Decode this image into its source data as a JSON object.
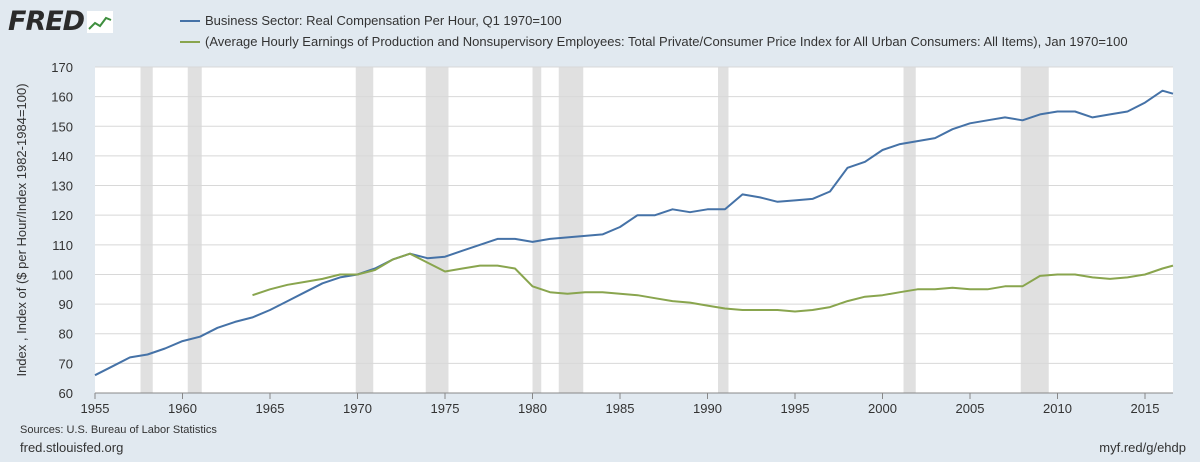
{
  "header": {
    "logo_text": "FRED"
  },
  "chart_data": {
    "type": "line",
    "title": "",
    "xlabel": "",
    "ylabel": "Index , Index of ($ per Hour/Index 1982-1984=100)",
    "xlim": [
      1955,
      2016.6
    ],
    "ylim": [
      60,
      170
    ],
    "x_ticks": [
      "1955",
      "1960",
      "1965",
      "1970",
      "1975",
      "1980",
      "1985",
      "1990",
      "1995",
      "2000",
      "2005",
      "2010",
      "2015"
    ],
    "y_ticks": [
      "60",
      "70",
      "80",
      "90",
      "100",
      "110",
      "120",
      "130",
      "140",
      "150",
      "160",
      "170"
    ],
    "recessions": [
      [
        1957.6,
        1958.3
      ],
      [
        1960.3,
        1961.1
      ],
      [
        1969.9,
        1970.9
      ],
      [
        1973.9,
        1975.2
      ],
      [
        1980.0,
        1980.5
      ],
      [
        1981.5,
        1982.9
      ],
      [
        1990.6,
        1991.2
      ],
      [
        2001.2,
        2001.9
      ],
      [
        2007.9,
        2009.5
      ]
    ],
    "series": [
      {
        "name": "Business Sector: Real Compensation Per Hour, Q1 1970=100",
        "color": "#4572a7",
        "x": [
          1955,
          1956,
          1957,
          1958,
          1959,
          1960,
          1961,
          1962,
          1963,
          1964,
          1965,
          1966,
          1967,
          1968,
          1969,
          1970,
          1971,
          1972,
          1973,
          1974,
          1975,
          1976,
          1977,
          1978,
          1979,
          1980,
          1981,
          1982,
          1983,
          1984,
          1985,
          1986,
          1987,
          1988,
          1989,
          1990,
          1991,
          1992,
          1993,
          1994,
          1995,
          1996,
          1997,
          1998,
          1999,
          2000,
          2001,
          2002,
          2003,
          2004,
          2005,
          2006,
          2007,
          2008,
          2009,
          2010,
          2011,
          2012,
          2013,
          2014,
          2015,
          2016,
          2016.6
        ],
        "values": [
          66,
          69,
          72,
          73,
          75,
          77.5,
          79,
          82,
          84,
          85.5,
          88,
          91,
          94,
          97,
          99,
          100,
          102,
          105,
          107,
          105.5,
          106,
          108,
          110,
          112,
          112,
          111,
          112,
          112.5,
          113,
          113.5,
          116,
          120,
          120,
          122,
          121,
          122,
          122,
          127,
          126,
          124.5,
          125,
          125.5,
          128,
          136,
          138,
          142,
          144,
          145,
          146,
          149,
          151,
          152,
          153,
          152,
          154,
          155,
          155,
          153,
          154,
          155,
          158,
          162,
          161
        ]
      },
      {
        "name": "(Average Hourly Earnings of Production and Nonsupervisory Employees: Total Private/Consumer Price Index for All Urban Consumers: All Items), Jan 1970=100",
        "color": "#89a54e",
        "x": [
          1964,
          1965,
          1966,
          1967,
          1968,
          1969,
          1970,
          1971,
          1972,
          1973,
          1974,
          1975,
          1976,
          1977,
          1978,
          1979,
          1980,
          1981,
          1982,
          1983,
          1984,
          1985,
          1986,
          1987,
          1988,
          1989,
          1990,
          1991,
          1992,
          1993,
          1994,
          1995,
          1996,
          1997,
          1998,
          1999,
          2000,
          2001,
          2002,
          2003,
          2004,
          2005,
          2006,
          2007,
          2008,
          2009,
          2010,
          2011,
          2012,
          2013,
          2014,
          2015,
          2016,
          2016.6
        ],
        "values": [
          93,
          95,
          96.5,
          97.5,
          98.5,
          100,
          100,
          101.5,
          105,
          107,
          104,
          101,
          102,
          103,
          103,
          102,
          96,
          94,
          93.5,
          94,
          94,
          93.5,
          93,
          92,
          91,
          90.5,
          89.5,
          88.5,
          88,
          88,
          88,
          87.5,
          88,
          89,
          91,
          92.5,
          93,
          94,
          95,
          95,
          95.5,
          95,
          95,
          96,
          96,
          99.5,
          100,
          100,
          99,
          98.5,
          99,
          100,
          102,
          103
        ]
      }
    ]
  },
  "footer": {
    "sources": "Sources: U.S. Bureau of Labor Statistics",
    "site": "fred.stlouisfed.org",
    "short_url": "myf.red/g/ehdp"
  }
}
